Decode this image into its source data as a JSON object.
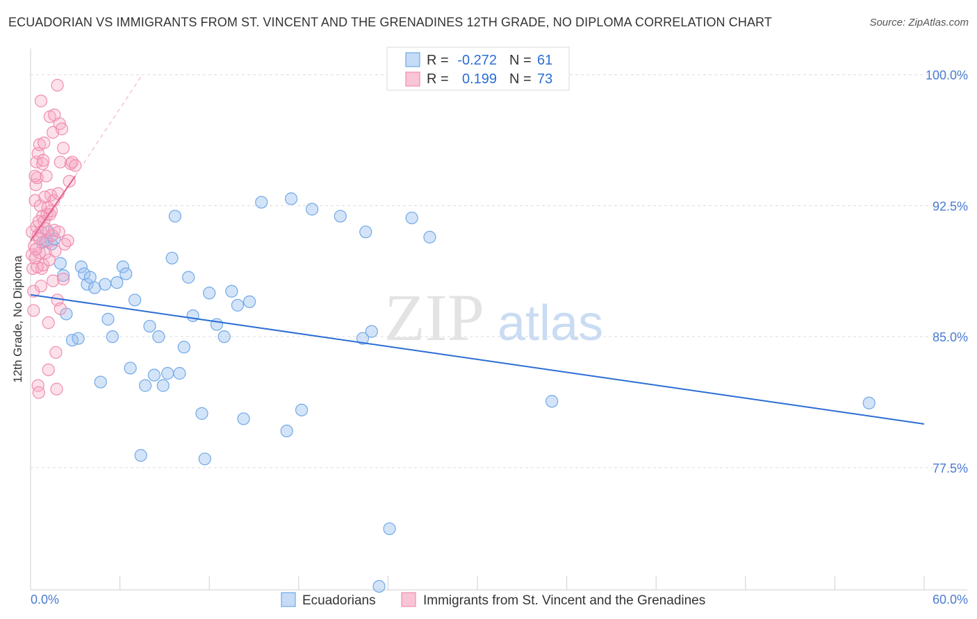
{
  "title": "ECUADORIAN VS IMMIGRANTS FROM ST. VINCENT AND THE GRENADINES 12TH GRADE, NO DIPLOMA CORRELATION CHART",
  "source": "Source: ZipAtlas.com",
  "watermark": {
    "zip": "ZIP",
    "atlas": "atlas"
  },
  "legend": {
    "rows": [
      {
        "r_label": "R =",
        "r_value": "-0.272",
        "n_label": "N =",
        "n_value": "61"
      },
      {
        "r_label": "R =",
        "r_value": "0.199",
        "n_label": "N =",
        "n_value": "73"
      }
    ]
  },
  "bottom_legend": [
    "Ecuadorians",
    "Immigrants from St. Vincent and the Grenadines"
  ],
  "colors": {
    "blue": "#6fa8e8",
    "blue_line": "#2a6dd4",
    "pink": "#f08cb0",
    "pink_line": "#e0608c"
  },
  "chart_data": {
    "type": "scatter",
    "xlabel": "",
    "ylabel": "12th Grade, No Diploma",
    "xlim": [
      0,
      60
    ],
    "ylim": [
      70.5,
      101.5
    ],
    "x_tick_labels": [
      "0.0%",
      "60.0%"
    ],
    "y_ticks": [
      100.0,
      92.5,
      85.0,
      77.5
    ],
    "y_tick_labels": [
      "100.0%",
      "92.5%",
      "85.0%",
      "77.5%"
    ],
    "grid": true,
    "series": [
      {
        "name": "Ecuadorians",
        "color": "#6fa8e8",
        "trend": {
          "x0": 0,
          "y0": 87.4,
          "x1": 60,
          "y1": 80.0
        },
        "points": [
          [
            1.0,
            90.5
          ],
          [
            1.2,
            91.0
          ],
          [
            1.4,
            90.3
          ],
          [
            2.0,
            89.2
          ],
          [
            2.2,
            88.5
          ],
          [
            2.4,
            86.3
          ],
          [
            2.8,
            84.8
          ],
          [
            3.2,
            84.9
          ],
          [
            3.4,
            89.0
          ],
          [
            3.6,
            88.6
          ],
          [
            3.8,
            88.0
          ],
          [
            4.0,
            88.4
          ],
          [
            4.3,
            87.8
          ],
          [
            4.7,
            82.4
          ],
          [
            5.0,
            88.0
          ],
          [
            5.2,
            86.0
          ],
          [
            5.5,
            85.0
          ],
          [
            5.8,
            88.1
          ],
          [
            6.2,
            89.0
          ],
          [
            6.4,
            88.6
          ],
          [
            6.7,
            83.2
          ],
          [
            7.0,
            87.1
          ],
          [
            7.4,
            78.2
          ],
          [
            7.7,
            82.2
          ],
          [
            8.0,
            85.6
          ],
          [
            8.3,
            82.8
          ],
          [
            8.6,
            85.0
          ],
          [
            8.9,
            82.2
          ],
          [
            9.2,
            82.9
          ],
          [
            9.5,
            89.5
          ],
          [
            9.7,
            91.9
          ],
          [
            10.0,
            82.9
          ],
          [
            10.3,
            84.4
          ],
          [
            10.6,
            88.4
          ],
          [
            10.9,
            86.2
          ],
          [
            11.5,
            80.6
          ],
          [
            11.7,
            78.0
          ],
          [
            12.0,
            87.5
          ],
          [
            12.5,
            85.7
          ],
          [
            13.0,
            85.0
          ],
          [
            13.5,
            87.6
          ],
          [
            13.9,
            86.8
          ],
          [
            14.3,
            80.3
          ],
          [
            14.7,
            87.0
          ],
          [
            15.5,
            92.7
          ],
          [
            17.2,
            79.6
          ],
          [
            17.5,
            92.9
          ],
          [
            18.2,
            80.8
          ],
          [
            18.9,
            92.3
          ],
          [
            20.8,
            91.9
          ],
          [
            22.3,
            84.9
          ],
          [
            22.5,
            91.0
          ],
          [
            22.9,
            85.3
          ],
          [
            23.4,
            70.7
          ],
          [
            24.1,
            74.0
          ],
          [
            25.6,
            91.8
          ],
          [
            26.8,
            90.7
          ],
          [
            35.0,
            81.3
          ],
          [
            56.3,
            81.2
          ],
          [
            1.6,
            90.6
          ],
          [
            0.8,
            90.4
          ]
        ]
      },
      {
        "name": "Immigrants from St. Vincent and the Grenadines",
        "color": "#f08cb0",
        "trend": {
          "x0": 0,
          "y0": 90.5,
          "x1": 3.0,
          "y1": 94.2
        },
        "trend_ext": {
          "x0": 3.0,
          "y0": 94.2,
          "x1": 7.5,
          "y1": 100.0
        },
        "points": [
          [
            0.1,
            91.0
          ],
          [
            0.1,
            89.7
          ],
          [
            0.15,
            88.9
          ],
          [
            0.2,
            87.6
          ],
          [
            0.2,
            86.5
          ],
          [
            0.25,
            90.2
          ],
          [
            0.3,
            89.5
          ],
          [
            0.3,
            92.8
          ],
          [
            0.35,
            93.7
          ],
          [
            0.4,
            91.3
          ],
          [
            0.4,
            95.0
          ],
          [
            0.45,
            94.1
          ],
          [
            0.5,
            95.5
          ],
          [
            0.5,
            90.8
          ],
          [
            0.5,
            82.2
          ],
          [
            0.55,
            81.8
          ],
          [
            0.6,
            96.0
          ],
          [
            0.6,
            89.8
          ],
          [
            0.65,
            92.5
          ],
          [
            0.7,
            98.5
          ],
          [
            0.7,
            91.0
          ],
          [
            0.75,
            88.9
          ],
          [
            0.8,
            94.9
          ],
          [
            0.8,
            91.9
          ],
          [
            0.85,
            89.1
          ],
          [
            0.9,
            91.6
          ],
          [
            0.9,
            96.1
          ],
          [
            1.0,
            91.2
          ],
          [
            1.0,
            89.8
          ],
          [
            1.05,
            94.2
          ],
          [
            1.1,
            92.0
          ],
          [
            1.1,
            90.5
          ],
          [
            1.2,
            85.8
          ],
          [
            1.2,
            83.1
          ],
          [
            1.3,
            97.6
          ],
          [
            1.3,
            92.0
          ],
          [
            1.35,
            93.1
          ],
          [
            1.4,
            92.2
          ],
          [
            1.45,
            90.8
          ],
          [
            1.5,
            96.7
          ],
          [
            1.5,
            88.2
          ],
          [
            1.55,
            92.8
          ],
          [
            1.6,
            91.1
          ],
          [
            1.6,
            97.7
          ],
          [
            1.65,
            89.9
          ],
          [
            1.7,
            84.1
          ],
          [
            1.75,
            82.0
          ],
          [
            1.8,
            99.4
          ],
          [
            1.8,
            87.1
          ],
          [
            1.85,
            93.2
          ],
          [
            1.9,
            91.0
          ],
          [
            1.95,
            97.2
          ],
          [
            2.0,
            86.6
          ],
          [
            2.0,
            95.0
          ],
          [
            2.1,
            96.9
          ],
          [
            2.2,
            95.8
          ],
          [
            2.2,
            88.3
          ],
          [
            2.3,
            90.3
          ],
          [
            2.5,
            90.5
          ],
          [
            2.6,
            93.9
          ],
          [
            2.7,
            94.9
          ],
          [
            2.8,
            95.0
          ],
          [
            3.0,
            94.8
          ],
          [
            0.3,
            94.2
          ],
          [
            0.6,
            90.6
          ],
          [
            0.7,
            87.9
          ],
          [
            0.95,
            93.0
          ],
          [
            1.25,
            89.4
          ],
          [
            0.45,
            89.0
          ],
          [
            1.15,
            92.4
          ],
          [
            0.35,
            90.0
          ],
          [
            0.85,
            95.1
          ],
          [
            0.55,
            91.6
          ]
        ]
      }
    ]
  }
}
